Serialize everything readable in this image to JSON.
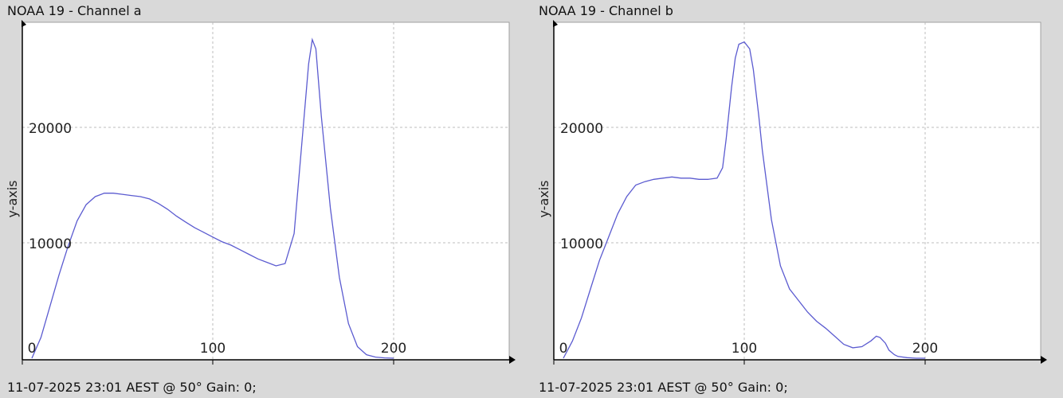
{
  "panels": [
    {
      "title": "NOAA 19 - Channel a",
      "footer": "11-07-2025 23:01 AEST @ 50° Gain: 0;",
      "chart_data": {
        "type": "line",
        "title": "NOAA 19 - Channel a",
        "xlabel": "",
        "ylabel": "y-axis",
        "xlim": [
          0,
          255
        ],
        "ylim": [
          0,
          29000
        ],
        "grid": true,
        "x_ticks": [
          0,
          100,
          200
        ],
        "y_ticks": [
          10000,
          20000
        ],
        "line_color": "#5b5bd0",
        "series": [
          {
            "x": [
              0,
              5,
              10,
              15,
              20,
              25,
              30,
              35,
              40,
              45,
              50,
              55,
              60,
              65,
              70,
              75,
              80,
              85,
              90,
              95,
              100,
              105,
              110,
              115,
              120,
              125,
              130,
              135,
              140,
              145,
              150,
              153,
              155,
              157,
              160,
              165,
              170,
              175,
              180,
              185,
              190,
              195,
              200
            ],
            "y": [
              0,
              1800,
              4500,
              7200,
              9700,
              11900,
              13300,
              14000,
              14300,
              14300,
              14200,
              14100,
              14000,
              13800,
              13400,
              12900,
              12300,
              11800,
              11300,
              10900,
              10500,
              10100,
              9800,
              9400,
              9000,
              8600,
              8300,
              8000,
              8200,
              10800,
              20000,
              25500,
              27600,
              26800,
              21000,
              13000,
              7000,
              3000,
              1000,
              300,
              100,
              30,
              0
            ]
          }
        ]
      }
    },
    {
      "title": "NOAA 19 - Channel b",
      "footer": "11-07-2025 23:01 AEST @ 50° Gain: 0;",
      "chart_data": {
        "type": "line",
        "title": "NOAA 19 - Channel b",
        "xlabel": "",
        "ylabel": "y-axis",
        "xlim": [
          0,
          255
        ],
        "ylim": [
          0,
          29000
        ],
        "grid": true,
        "x_ticks": [
          0,
          100,
          200
        ],
        "y_ticks": [
          10000,
          20000
        ],
        "line_color": "#5b5bd0",
        "series": [
          {
            "x": [
              0,
              5,
              10,
              15,
              20,
              25,
              30,
              35,
              40,
              45,
              50,
              55,
              60,
              65,
              70,
              75,
              80,
              85,
              88,
              90,
              93,
              95,
              97,
              100,
              103,
              105,
              108,
              110,
              115,
              120,
              125,
              130,
              135,
              140,
              145,
              150,
              155,
              160,
              165,
              170,
              173,
              175,
              178,
              180,
              183,
              185,
              190,
              195,
              200
            ],
            "y": [
              0,
              1500,
              3500,
              6000,
              8500,
              10500,
              12500,
              14000,
              15000,
              15300,
              15500,
              15600,
              15700,
              15600,
              15600,
              15500,
              15500,
              15600,
              16500,
              19000,
              23500,
              26000,
              27200,
              27400,
              26800,
              25000,
              21000,
              18000,
              12000,
              8000,
              6000,
              5000,
              4000,
              3200,
              2600,
              1900,
              1200,
              900,
              1000,
              1500,
              1900,
              1800,
              1300,
              700,
              300,
              150,
              50,
              0,
              0
            ]
          }
        ]
      }
    }
  ]
}
